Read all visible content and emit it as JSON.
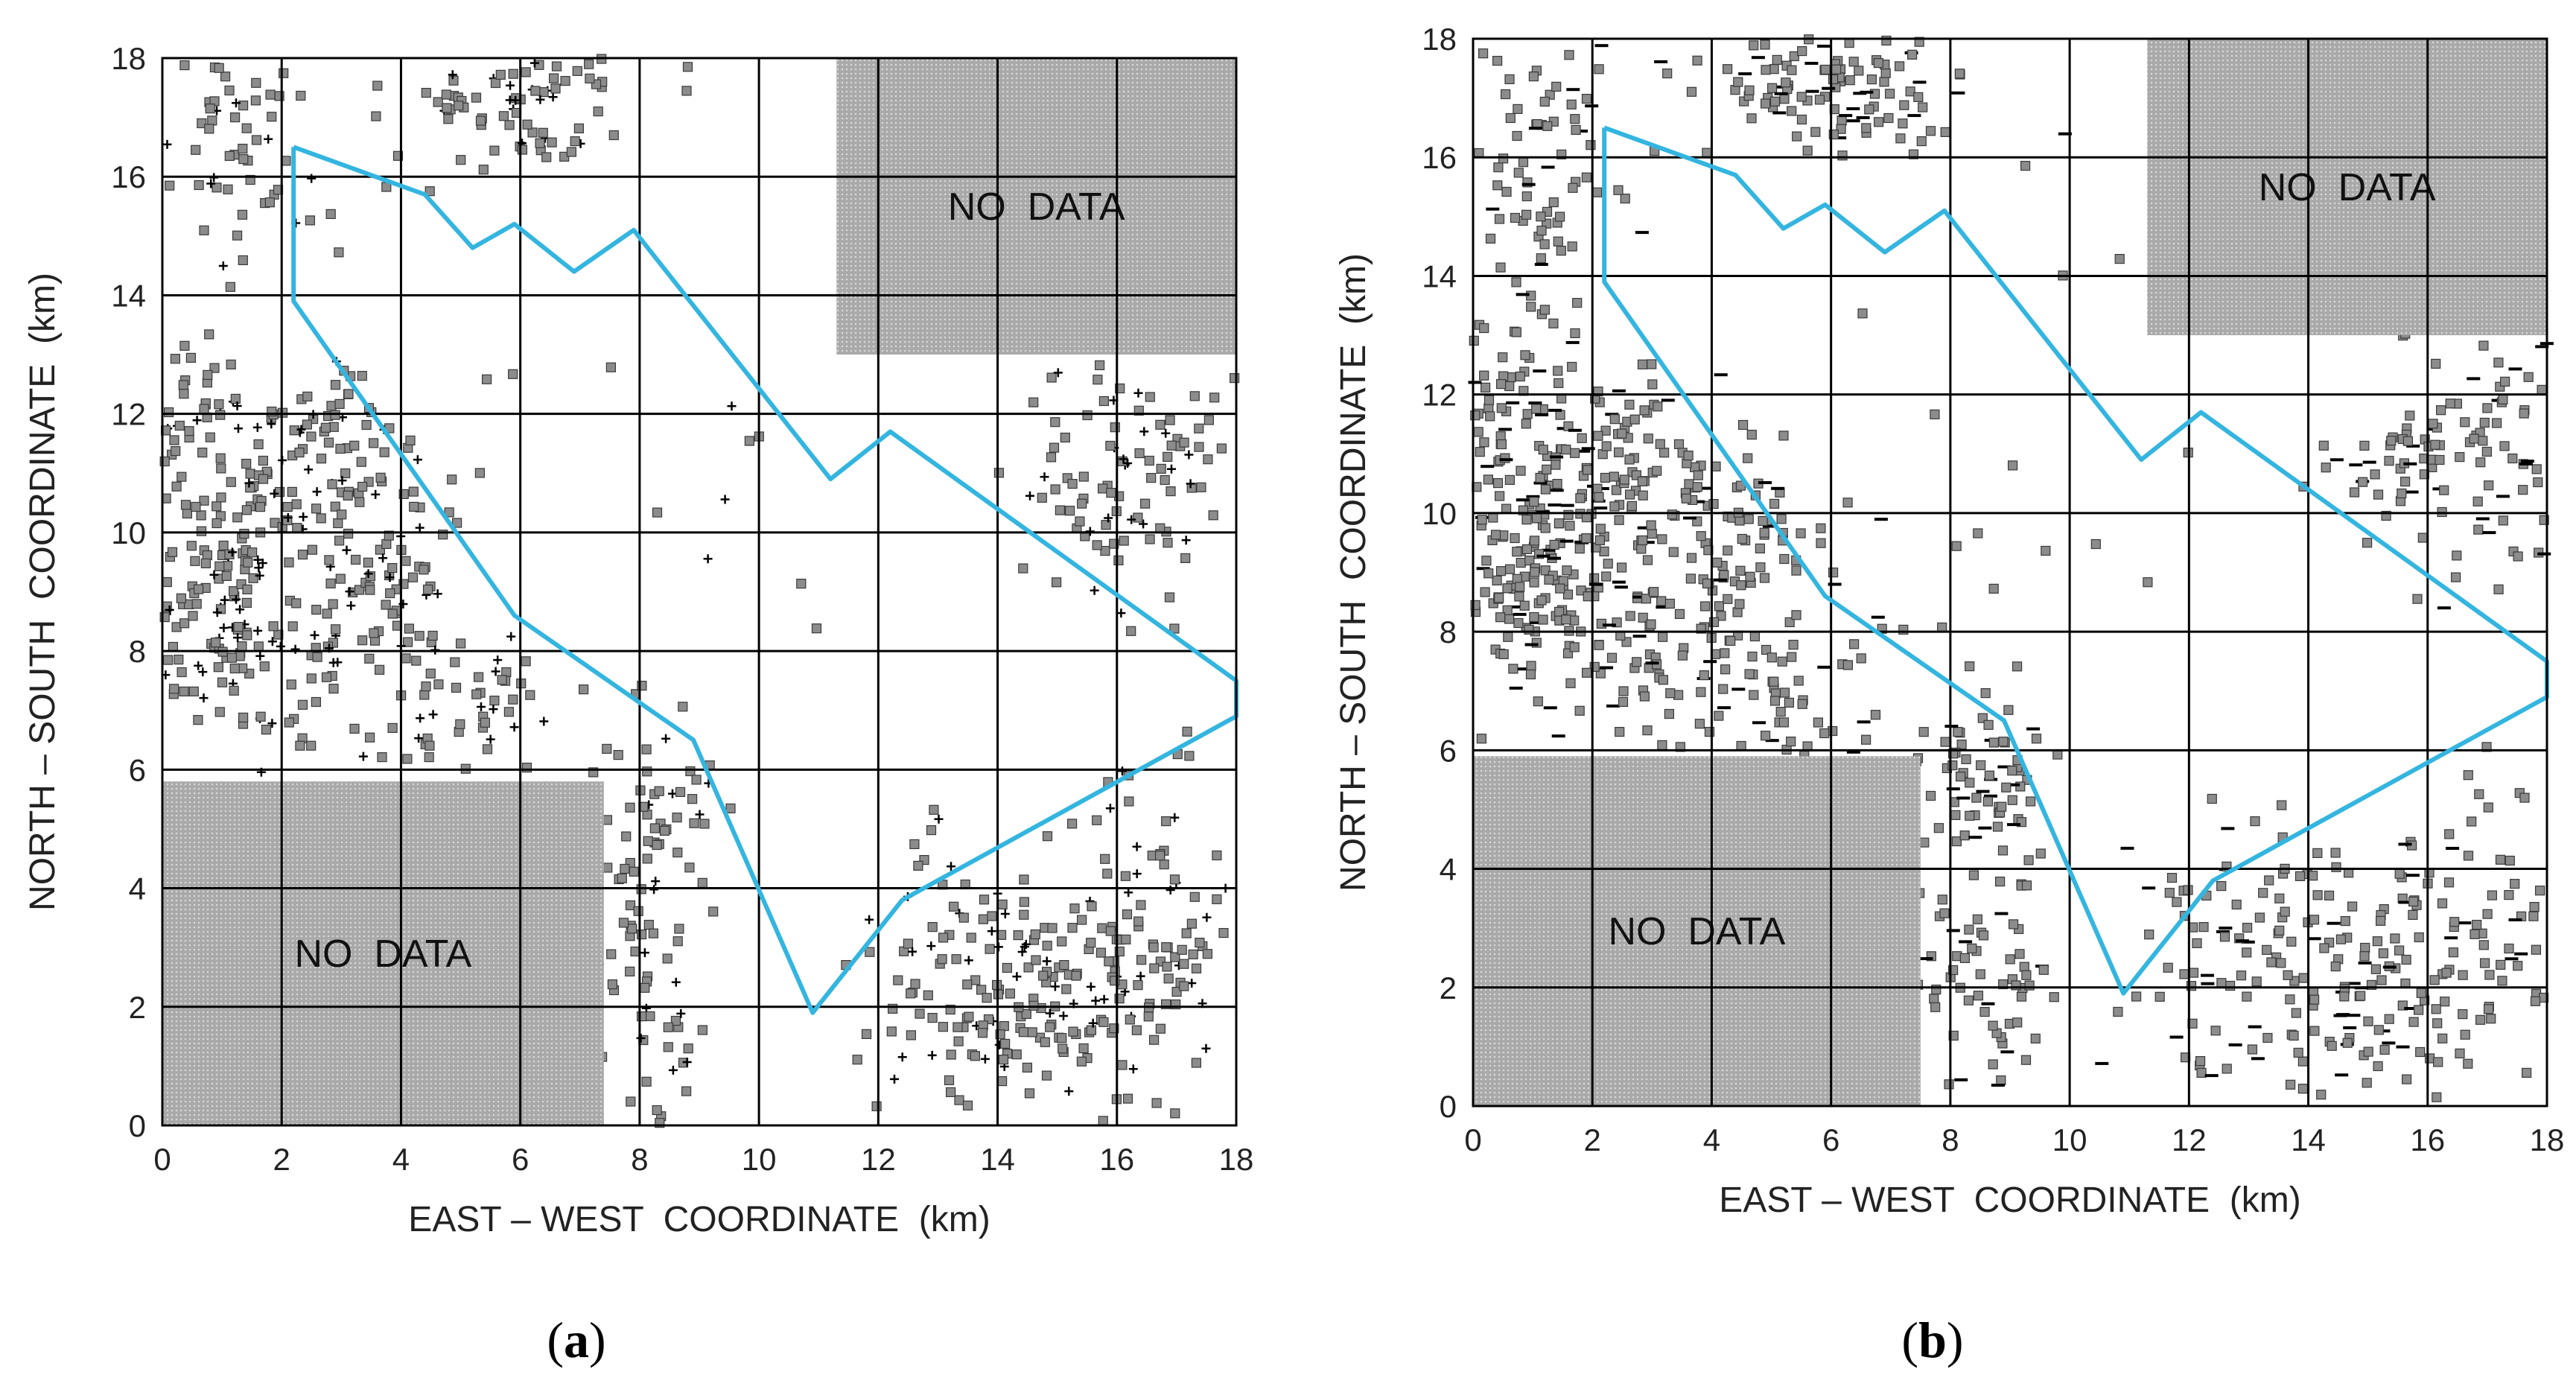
{
  "colors": {
    "outline": "#33b5e0",
    "points": "#8c8c8c",
    "point_edge": "#3a3a3a",
    "dash_marks": "#000000",
    "no_data_fill": "#a9a9a9",
    "grid": "#000000"
  },
  "chart_data": [
    {
      "type": "scatter",
      "panel_label": "a",
      "caption": {
        "open": "(",
        "letter": "a",
        "close": ")"
      },
      "xlabel": "EAST – WEST  COORDINATE  (km)",
      "ylabel": "NORTH – SOUTH  COORDINATE  (km)",
      "xlim": [
        0,
        18
      ],
      "ylim": [
        0,
        18
      ],
      "xticks": [
        0,
        2,
        4,
        6,
        8,
        10,
        12,
        14,
        16,
        18
      ],
      "yticks": [
        0,
        2,
        4,
        6,
        8,
        10,
        12,
        14,
        16,
        18
      ],
      "grid": true,
      "secondary_marker": "plus",
      "no_data_regions": [
        {
          "label": "NO  DATA",
          "x0": 0,
          "x1": 7.4,
          "y0": 0,
          "y1": 5.8
        },
        {
          "label": "NO  DATA",
          "x0": 11.3,
          "x1": 18,
          "y0": 13,
          "y1": 18
        }
      ],
      "outline": {
        "name": "boundary",
        "x": [
          2.2,
          4.4,
          5.2,
          5.9,
          6.9,
          7.9,
          11.2,
          12.2,
          18.0,
          18.0,
          12.4,
          10.9,
          8.9,
          5.9,
          2.2,
          2.2
        ],
        "y": [
          16.5,
          15.7,
          14.8,
          15.2,
          14.4,
          15.1,
          10.9,
          11.7,
          7.5,
          6.9,
          3.8,
          1.9,
          6.5,
          8.6,
          13.9,
          16.5
        ]
      },
      "clusters": [
        {
          "cx": 0.9,
          "cy": 9.0,
          "sx": 0.9,
          "sy": 1.0,
          "n": 150
        },
        {
          "cx": 0.5,
          "cy": 12.3,
          "sx": 0.4,
          "sy": 0.7,
          "n": 40
        },
        {
          "cx": 1.3,
          "cy": 16.4,
          "sx": 0.7,
          "sy": 1.1,
          "n": 60
        },
        {
          "cx": 2.2,
          "cy": 10.8,
          "sx": 0.8,
          "sy": 0.8,
          "n": 70
        },
        {
          "cx": 4.0,
          "cy": 9.5,
          "sx": 0.7,
          "sy": 0.9,
          "n": 70
        },
        {
          "cx": 3.0,
          "cy": 12.0,
          "sx": 0.5,
          "sy": 0.6,
          "n": 30
        },
        {
          "cx": 5.0,
          "cy": 6.9,
          "sx": 0.9,
          "sy": 0.7,
          "n": 50
        },
        {
          "cx": 2.3,
          "cy": 7.5,
          "sx": 0.9,
          "sy": 0.7,
          "n": 40
        },
        {
          "cx": 6.0,
          "cy": 17.2,
          "sx": 1.2,
          "sy": 0.6,
          "n": 90
        },
        {
          "cx": 8.1,
          "cy": 2.5,
          "sx": 0.4,
          "sy": 1.3,
          "n": 60
        },
        {
          "cx": 8.3,
          "cy": 5.3,
          "sx": 0.6,
          "sy": 0.7,
          "n": 40
        },
        {
          "cx": 14.5,
          "cy": 2.3,
          "sx": 1.6,
          "sy": 1.2,
          "n": 230
        },
        {
          "cx": 15.8,
          "cy": 10.9,
          "sx": 0.8,
          "sy": 0.9,
          "n": 70
        },
        {
          "cx": 17.3,
          "cy": 11.0,
          "sx": 0.6,
          "sy": 1.0,
          "n": 30
        },
        {
          "cx": 17.0,
          "cy": 3.5,
          "sx": 0.8,
          "sy": 1.6,
          "n": 50
        },
        {
          "cx": 9.5,
          "cy": 9.0,
          "sx": 3.5,
          "sy": 5.0,
          "n": 25
        }
      ],
      "seed": 11
    },
    {
      "type": "scatter",
      "panel_label": "b",
      "caption": {
        "open": "(",
        "letter": "b",
        "close": ")"
      },
      "xlabel": "EAST – WEST  COORDINATE  (km)",
      "ylabel": "NORTH – SOUTH  COORDINATE  (km)",
      "xlim": [
        0,
        18
      ],
      "ylim": [
        0,
        18
      ],
      "xticks": [
        0,
        2,
        4,
        6,
        8,
        10,
        12,
        14,
        16,
        18
      ],
      "yticks": [
        0,
        2,
        4,
        6,
        8,
        10,
        12,
        14,
        16,
        18
      ],
      "grid": true,
      "secondary_marker": "dash",
      "no_data_regions": [
        {
          "label": "NO  DATA",
          "x0": 0,
          "x1": 7.5,
          "y0": 0,
          "y1": 5.9
        },
        {
          "label": "NO  DATA",
          "x0": 11.3,
          "x1": 18,
          "y0": 13,
          "y1": 18
        }
      ],
      "outline": {
        "name": "boundary",
        "x": [
          2.2,
          4.4,
          5.2,
          5.9,
          6.9,
          7.9,
          11.2,
          12.2,
          18.0,
          18.0,
          12.4,
          10.9,
          8.9,
          5.9,
          2.2,
          2.2
        ],
        "y": [
          16.5,
          15.7,
          14.8,
          15.2,
          14.4,
          15.1,
          10.9,
          11.7,
          7.5,
          6.9,
          3.8,
          1.9,
          6.5,
          8.6,
          13.9,
          16.5
        ]
      },
      "clusters": [
        {
          "cx": 0.9,
          "cy": 9.0,
          "sx": 0.9,
          "sy": 1.1,
          "n": 200
        },
        {
          "cx": 0.6,
          "cy": 12.2,
          "sx": 0.5,
          "sy": 0.9,
          "n": 60
        },
        {
          "cx": 1.3,
          "cy": 16.0,
          "sx": 0.8,
          "sy": 1.2,
          "n": 80
        },
        {
          "cx": 2.4,
          "cy": 10.8,
          "sx": 0.8,
          "sy": 0.8,
          "n": 90
        },
        {
          "cx": 4.2,
          "cy": 9.6,
          "sx": 0.8,
          "sy": 0.9,
          "n": 100
        },
        {
          "cx": 5.0,
          "cy": 7.0,
          "sx": 1.0,
          "sy": 0.7,
          "n": 70
        },
        {
          "cx": 2.5,
          "cy": 7.6,
          "sx": 0.9,
          "sy": 0.7,
          "n": 50
        },
        {
          "cx": 6.0,
          "cy": 17.2,
          "sx": 1.3,
          "sy": 0.6,
          "n": 120
        },
        {
          "cx": 8.6,
          "cy": 2.5,
          "sx": 0.6,
          "sy": 1.5,
          "n": 80
        },
        {
          "cx": 8.6,
          "cy": 5.5,
          "sx": 0.5,
          "sy": 0.7,
          "n": 60
        },
        {
          "cx": 14.5,
          "cy": 2.3,
          "sx": 1.7,
          "sy": 1.1,
          "n": 220
        },
        {
          "cx": 15.8,
          "cy": 10.9,
          "sx": 0.9,
          "sy": 0.9,
          "n": 70
        },
        {
          "cx": 17.3,
          "cy": 11.2,
          "sx": 0.6,
          "sy": 1.0,
          "n": 40
        },
        {
          "cx": 17.0,
          "cy": 3.5,
          "sx": 0.8,
          "sy": 1.5,
          "n": 40
        },
        {
          "cx": 9.5,
          "cy": 9.0,
          "sx": 3.5,
          "sy": 5.0,
          "n": 30
        }
      ],
      "seed": 23
    }
  ]
}
